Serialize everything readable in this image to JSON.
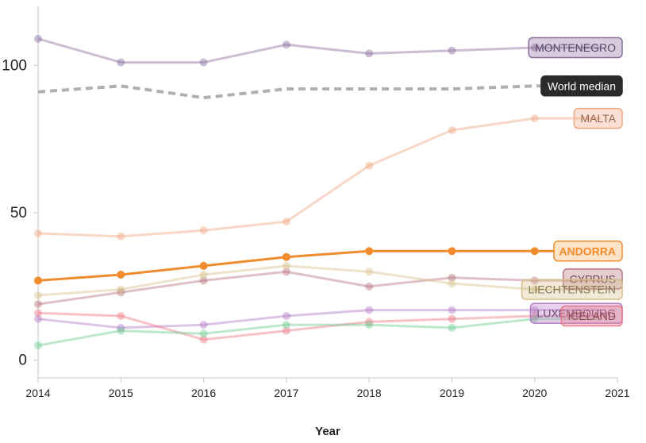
{
  "chart_data": {
    "type": "line",
    "title": "",
    "xlabel": "Year",
    "ylabel": "",
    "x": [
      2014,
      2015,
      2016,
      2017,
      2018,
      2019,
      2020
    ],
    "xlim": [
      2014,
      2021
    ],
    "xticks": [
      "2014",
      "2015",
      "2016",
      "2017",
      "2018",
      "2019",
      "2020",
      "2021"
    ],
    "ylim": [
      -6,
      120
    ],
    "yticks": [
      "0",
      "50",
      "100"
    ],
    "grid": false,
    "series": [
      {
        "name": "MONTENEGRO",
        "color": "#8c6d9e",
        "faded": true,
        "label_style": "box",
        "values": [
          109,
          101,
          101,
          107,
          104,
          105,
          106
        ]
      },
      {
        "name": "World median",
        "color": "#b0b0b0",
        "dashed": true,
        "label_style": "dark",
        "values": [
          91,
          93,
          89,
          92,
          92,
          92,
          93
        ]
      },
      {
        "name": "MALTA",
        "color": "#f0a683",
        "faded": true,
        "label_style": "box",
        "values": [
          43,
          42,
          44,
          47,
          66,
          78,
          82
        ]
      },
      {
        "name": "ANDORRA",
        "color": "#f08c2e",
        "faded": false,
        "label_style": "box",
        "values": [
          27,
          29,
          32,
          35,
          37,
          37,
          37
        ]
      },
      {
        "name": "CYPRUS",
        "color": "#b5737e",
        "faded": true,
        "label_style": "box",
        "values": [
          19,
          23,
          27,
          30,
          25,
          28,
          27
        ]
      },
      {
        "name": "LIECHTENSTEIN",
        "color": "#d6c08a",
        "faded": true,
        "label_style": "box",
        "values": [
          22,
          24,
          29,
          32,
          30,
          26,
          24
        ]
      },
      {
        "name": "LUXEMBOURG",
        "color": "#b47bc5",
        "faded": true,
        "label_style": "box",
        "values": [
          14,
          11,
          12,
          15,
          17,
          17,
          17
        ]
      },
      {
        "name": "ICELAND",
        "color": "#ea7b86",
        "faded": true,
        "label_style": "box",
        "values": [
          16,
          15,
          7,
          10,
          13,
          14,
          15
        ]
      },
      {
        "name": "",
        "color": "#6fcc93",
        "faded": true,
        "label_style": "none",
        "values": [
          5,
          10,
          9,
          12,
          12,
          11,
          14
        ]
      }
    ]
  }
}
